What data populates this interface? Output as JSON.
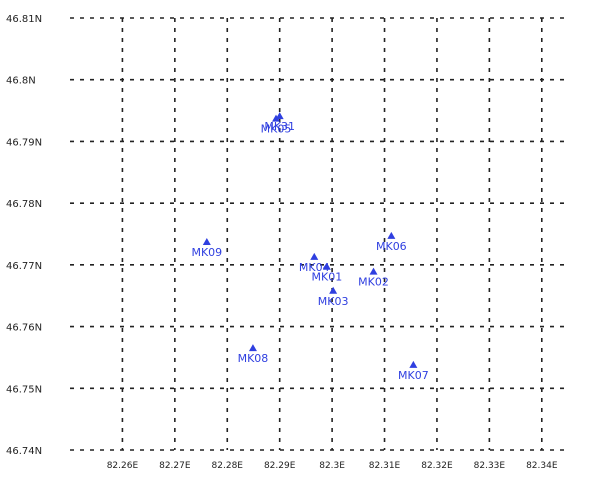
{
  "chart_data": {
    "type": "scatter",
    "title": "",
    "xlabel": "",
    "ylabel": "",
    "xlim": [
      82.25,
      82.345
    ],
    "ylim": [
      46.74,
      46.81
    ],
    "grid": true,
    "marker_color": "#2f3fe0",
    "grid_color": "#222222",
    "y_ticks": [
      {
        "value": 46.81,
        "label": "46.81N"
      },
      {
        "value": 46.8,
        "label": "46.8N"
      },
      {
        "value": 46.79,
        "label": "46.79N"
      },
      {
        "value": 46.78,
        "label": "46.78N"
      },
      {
        "value": 46.77,
        "label": "46.77N"
      },
      {
        "value": 46.76,
        "label": "46.76N"
      },
      {
        "value": 46.75,
        "label": "46.75N"
      },
      {
        "value": 46.74,
        "label": "46.74N"
      }
    ],
    "x_ticks": [
      {
        "value": 82.26,
        "label": "82.26E"
      },
      {
        "value": 82.27,
        "label": "82.27E"
      },
      {
        "value": 82.28,
        "label": "82.28E"
      },
      {
        "value": 82.29,
        "label": "82.29E"
      },
      {
        "value": 82.3,
        "label": "82.3E"
      },
      {
        "value": 82.31,
        "label": "82.31E"
      },
      {
        "value": 82.32,
        "label": "82.32E"
      },
      {
        "value": 82.33,
        "label": "82.33E"
      },
      {
        "value": 82.34,
        "label": "82.34E"
      }
    ],
    "stations": [
      {
        "name": "MK01",
        "lon": 82.299,
        "lat": 46.7697
      },
      {
        "name": "MK02",
        "lon": 82.3079,
        "lat": 46.7689
      },
      {
        "name": "MK03",
        "lon": 82.3002,
        "lat": 46.7658
      },
      {
        "name": "MK04",
        "lon": 82.2966,
        "lat": 46.7713
      },
      {
        "name": "MK05",
        "lon": 82.2893,
        "lat": 46.7937
      },
      {
        "name": "MK06",
        "lon": 82.3113,
        "lat": 46.7747
      },
      {
        "name": "MK07",
        "lon": 82.3155,
        "lat": 46.7538
      },
      {
        "name": "MK08",
        "lon": 82.2849,
        "lat": 46.7565
      },
      {
        "name": "MK09",
        "lon": 82.2761,
        "lat": 46.7737
      },
      {
        "name": "MK31",
        "lon": 82.29,
        "lat": 46.7941
      }
    ]
  }
}
